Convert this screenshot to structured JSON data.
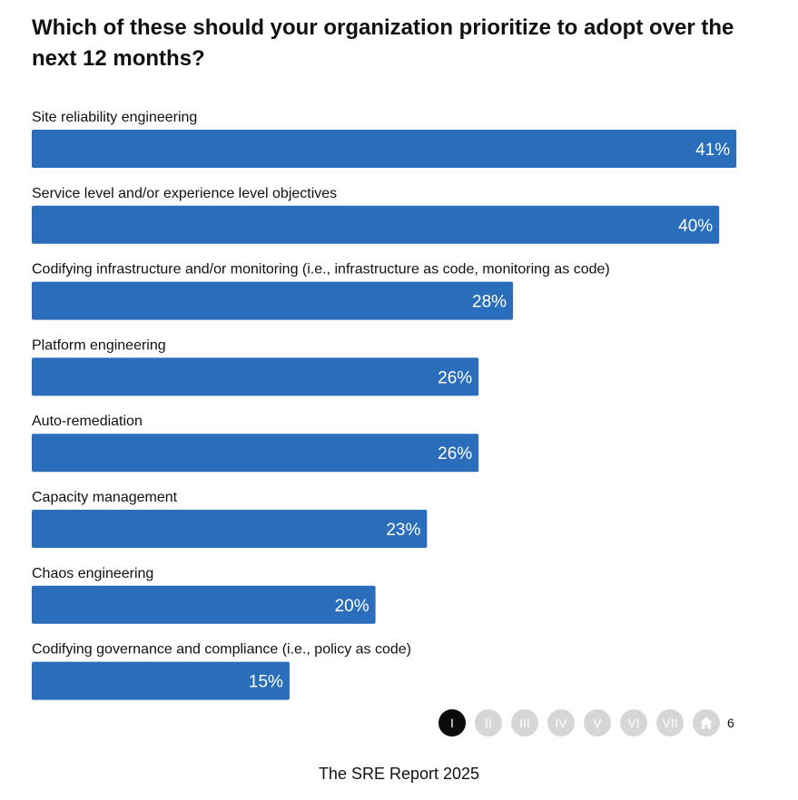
{
  "title": "Which of these should your organization prioritize to adopt over the next 12 months?",
  "chart_data": {
    "type": "bar",
    "orientation": "horizontal",
    "categories": [
      "Site reliability engineering",
      "Service level and/or experience level objectives",
      "Codifying infrastructure and/or monitoring (i.e., infrastructure as code, monitoring as code)",
      "Platform engineering",
      "Auto-remediation",
      "Capacity management",
      "Chaos engineering",
      "Codifying governance and compliance (i.e., policy as code)"
    ],
    "values": [
      41,
      40,
      28,
      26,
      26,
      23,
      20,
      15
    ],
    "value_labels": [
      "41%",
      "40%",
      "28%",
      "26%",
      "26%",
      "23%",
      "20%",
      "15%"
    ],
    "unit": "%",
    "bar_color": "#2a6ebb",
    "grid": false,
    "legend": "none"
  },
  "nav": {
    "items": [
      "I",
      "II",
      "III",
      "IV",
      "V",
      "VI",
      "VII"
    ],
    "active_index": 0,
    "home_icon": "home-icon",
    "page_number": "6"
  },
  "footer": "The SRE Report 2025"
}
